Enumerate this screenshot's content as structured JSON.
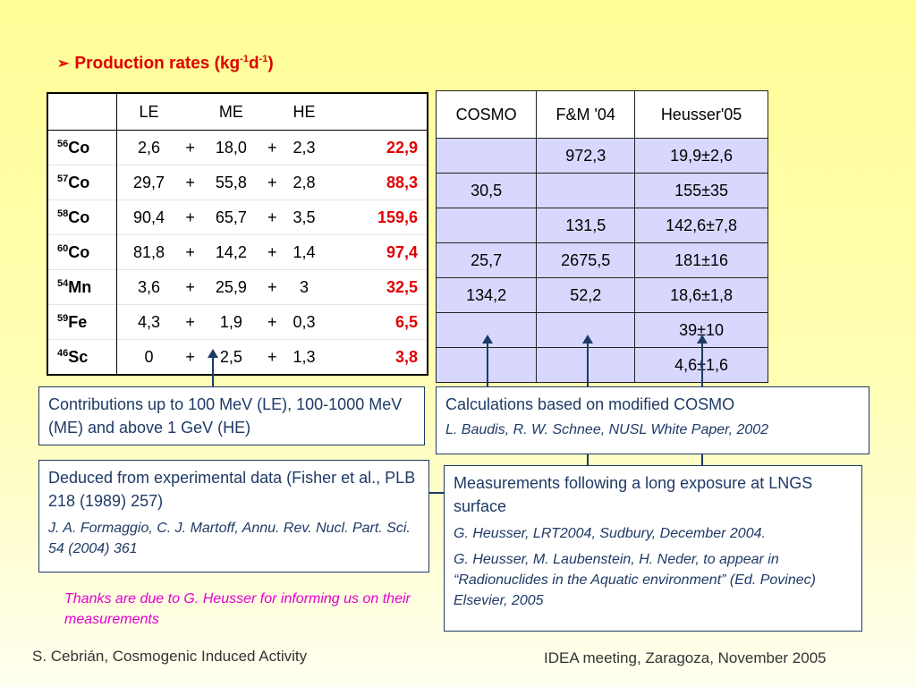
{
  "title": {
    "prefix": "Production rates (kg",
    "exp1": "-1",
    "mid": "d",
    "exp2": "-1",
    "suffix": ")"
  },
  "table1": {
    "headers": [
      "",
      "LE",
      "",
      "ME",
      "",
      "HE",
      ""
    ],
    "rows": [
      {
        "mass": "56",
        "element": "Co",
        "le": "2,6",
        "op1": "+",
        "me": "18,0",
        "op2": "+",
        "he": "2,3",
        "total": "22,9"
      },
      {
        "mass": "57",
        "element": "Co",
        "le": "29,7",
        "op1": "+",
        "me": "55,8",
        "op2": "+",
        "he": "2,8",
        "total": "88,3"
      },
      {
        "mass": "58",
        "element": "Co",
        "le": "90,4",
        "op1": "+",
        "me": "65,7",
        "op2": "+",
        "he": "3,5",
        "total": "159,6"
      },
      {
        "mass": "60",
        "element": "Co",
        "le": "81,8",
        "op1": "+",
        "me": "14,2",
        "op2": "+",
        "he": "1,4",
        "total": "97,4"
      },
      {
        "mass": "54",
        "element": "Mn",
        "le": "3,6",
        "op1": "+",
        "me": "25,9",
        "op2": "+",
        "he": "3",
        "total": "32,5"
      },
      {
        "mass": "59",
        "element": "Fe",
        "le": "4,3",
        "op1": "+",
        "me": "1,9",
        "op2": "+",
        "he": "0,3",
        "total": "6,5"
      },
      {
        "mass": "46",
        "element": "Sc",
        "le": "0",
        "op1": "+",
        "me": "2,5",
        "op2": "+",
        "he": "1,3",
        "total": "3,8"
      }
    ]
  },
  "table2": {
    "headers": [
      "COSMO",
      "F&M '04",
      "Heusser'05"
    ],
    "rows": [
      [
        "",
        "972,3",
        "19,9±2,6"
      ],
      [
        "30,5",
        "",
        "155±35"
      ],
      [
        "",
        "131,5",
        "142,6±7,8"
      ],
      [
        "25,7",
        "2675,5",
        "181±16"
      ],
      [
        "134,2",
        "52,2",
        "18,6±1,8"
      ],
      [
        "",
        "",
        "39±10"
      ],
      [
        "",
        "",
        "4,6±1,6"
      ]
    ]
  },
  "boxes": {
    "contrib": {
      "main": "Contributions up to 100 MeV (LE), 100-1000 MeV (ME) and above 1 GeV (HE)"
    },
    "deduced": {
      "main": "Deduced from experimental data (Fisher et al., PLB 218 (1989) 257)",
      "ref": "J. A. Formaggio, C. J. Martoff, Annu. Rev. Nucl. Part. Sci. 54 (2004) 361"
    },
    "calc": {
      "main": "Calculations based on modified COSMO",
      "ref": "L. Baudis, R. W. Schnee, NUSL White Paper, 2002"
    },
    "meas": {
      "main": "Measurements following a long exposure at LNGS surface",
      "ref1": "G. Heusser, LRT2004, Sudbury, December 2004.",
      "ref2": "G. Heusser, M. Laubenstein, H. Neder, to appear in “Radionuclides in the Aquatic environment” (Ed. Povinec) Elsevier, 2005"
    }
  },
  "thanks": "Thanks are due to G. Heusser for informing us on their measurements",
  "footer": {
    "left": "S. Cebrián, Cosmogenic Induced Activity",
    "right": "IDEA meeting, Zaragoza, November 2005"
  },
  "colors": {
    "accent_red": "#e00000",
    "box_border": "#1f3a66",
    "table2_bg": "#d8d8ff",
    "thanks": "#e000d0"
  }
}
